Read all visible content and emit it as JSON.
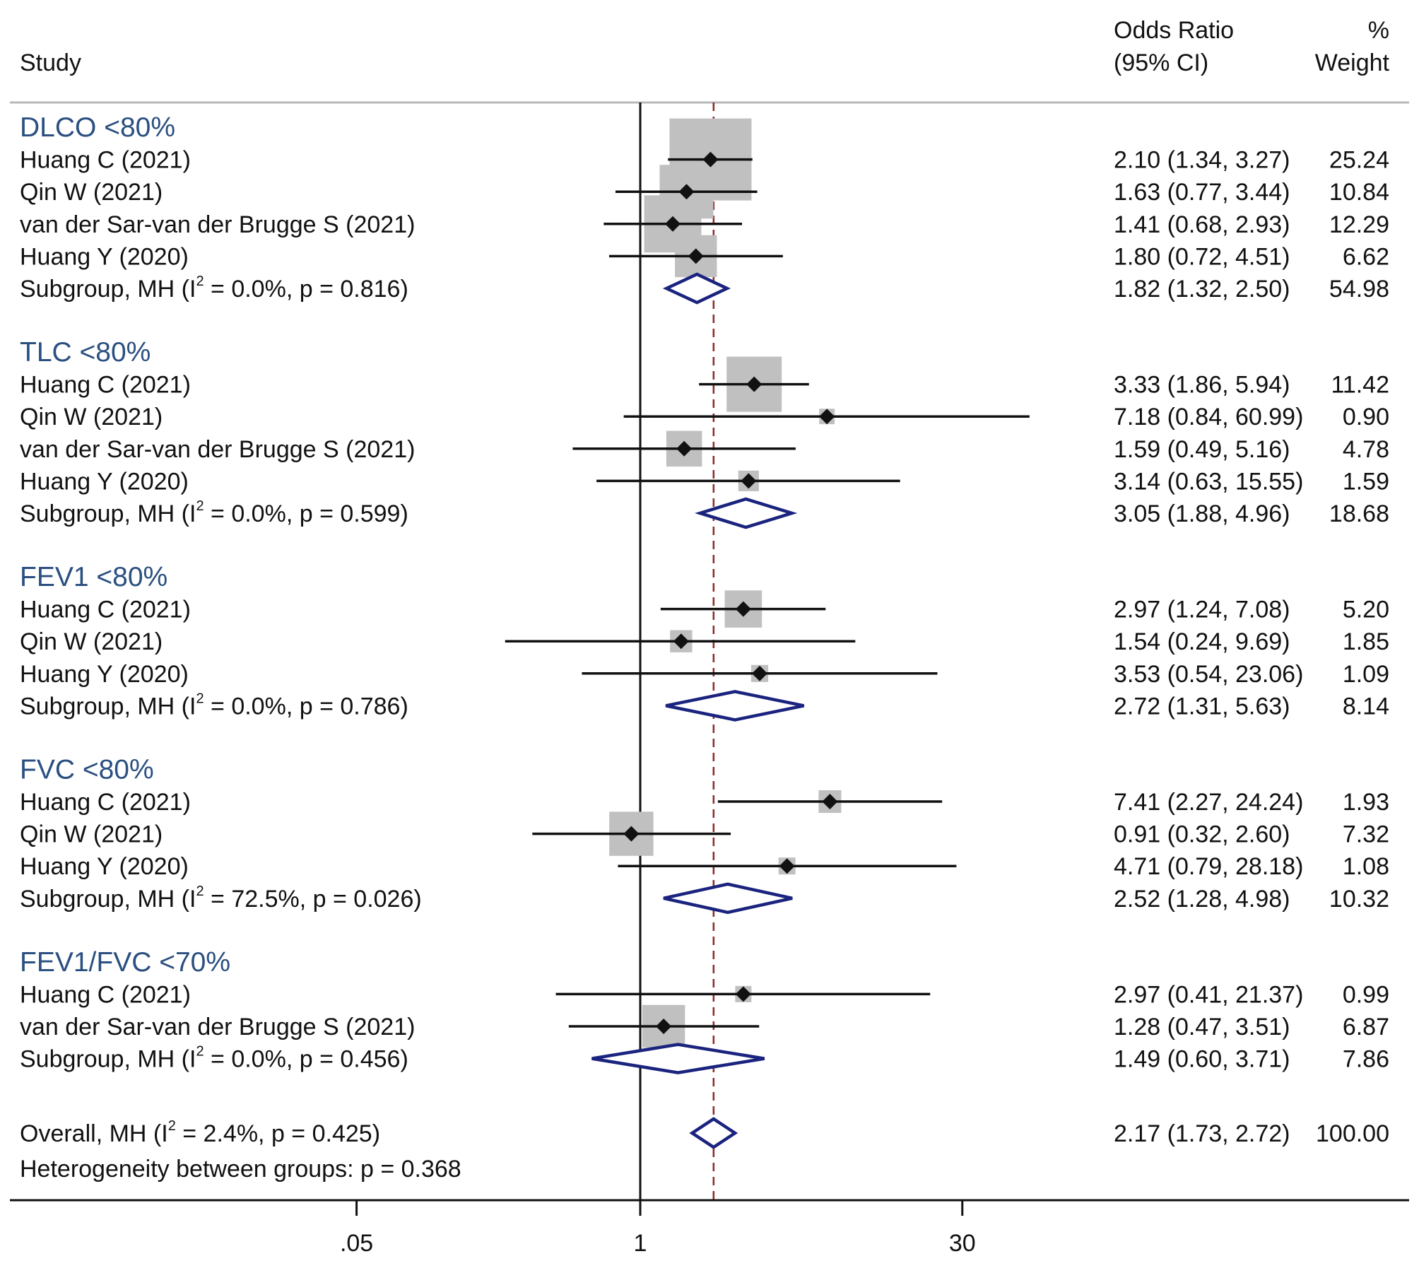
{
  "chart_data": {
    "type": "forest",
    "measure": "Odds Ratio",
    "scale": "log",
    "header": {
      "study": "Study",
      "or_line1": "Odds Ratio",
      "or_line2": "(95% CI)",
      "weight_line1": "%",
      "weight_line2": "Weight"
    },
    "null_value": 1,
    "overall_reference": 2.17,
    "x_ticks": [
      {
        "value": 0.05,
        "label": ".05"
      },
      {
        "value": 1,
        "label": "1"
      },
      {
        "value": 30,
        "label": "30"
      }
    ],
    "groups": [
      {
        "title": "DLCO <80%",
        "studies": [
          {
            "label": "Huang C (2021)",
            "or": 2.1,
            "lo": 1.34,
            "hi": 3.27,
            "ci_text": "2.10 (1.34, 3.27)",
            "weight": "25.24"
          },
          {
            "label": "Qin W (2021)",
            "or": 1.63,
            "lo": 0.77,
            "hi": 3.44,
            "ci_text": "1.63 (0.77, 3.44)",
            "weight": "10.84"
          },
          {
            "label": "van der Sar-van der Brugge S (2021)",
            "or": 1.41,
            "lo": 0.68,
            "hi": 2.93,
            "ci_text": "1.41 (0.68, 2.93)",
            "weight": "12.29"
          },
          {
            "label": "Huang Y (2020)",
            "or": 1.8,
            "lo": 0.72,
            "hi": 4.51,
            "ci_text": "1.80 (0.72, 4.51)",
            "weight": "6.62"
          }
        ],
        "subgroup": {
          "prefix": "Subgroup, MH (I",
          "sup": "2",
          "suffix": " = 0.0%, p = 0.816)",
          "or": 1.82,
          "lo": 1.32,
          "hi": 2.5,
          "ci_text": "1.82 (1.32, 2.50)",
          "weight": "54.98"
        }
      },
      {
        "title": "TLC <80%",
        "studies": [
          {
            "label": "Huang C (2021)",
            "or": 3.33,
            "lo": 1.86,
            "hi": 5.94,
            "ci_text": "3.33 (1.86, 5.94)",
            "weight": "11.42"
          },
          {
            "label": "Qin W (2021)",
            "or": 7.18,
            "lo": 0.84,
            "hi": 60.99,
            "ci_text": "7.18 (0.84, 60.99)",
            "weight": "0.90"
          },
          {
            "label": "van der Sar-van der Brugge S (2021)",
            "or": 1.59,
            "lo": 0.49,
            "hi": 5.16,
            "ci_text": "1.59 (0.49, 5.16)",
            "weight": "4.78"
          },
          {
            "label": "Huang Y (2020)",
            "or": 3.14,
            "lo": 0.63,
            "hi": 15.55,
            "ci_text": "3.14 (0.63, 15.55)",
            "weight": "1.59"
          }
        ],
        "subgroup": {
          "prefix": "Subgroup, MH (I",
          "sup": "2",
          "suffix": " = 0.0%, p = 0.599)",
          "or": 3.05,
          "lo": 1.88,
          "hi": 4.96,
          "ci_text": "3.05 (1.88, 4.96)",
          "weight": "18.68"
        }
      },
      {
        "title": "FEV1 <80%",
        "studies": [
          {
            "label": "Huang C (2021)",
            "or": 2.97,
            "lo": 1.24,
            "hi": 7.08,
            "ci_text": "2.97 (1.24, 7.08)",
            "weight": "5.20"
          },
          {
            "label": "Qin W (2021)",
            "or": 1.54,
            "lo": 0.24,
            "hi": 9.69,
            "ci_text": "1.54 (0.24, 9.69)",
            "weight": "1.85"
          },
          {
            "label": "Huang Y (2020)",
            "or": 3.53,
            "lo": 0.54,
            "hi": 23.06,
            "ci_text": "3.53 (0.54, 23.06)",
            "weight": "1.09"
          }
        ],
        "subgroup": {
          "prefix": "Subgroup, MH (I",
          "sup": "2",
          "suffix": " = 0.0%, p = 0.786)",
          "or": 2.72,
          "lo": 1.31,
          "hi": 5.63,
          "ci_text": "2.72 (1.31, 5.63)",
          "weight": "8.14"
        }
      },
      {
        "title": "FVC <80%",
        "studies": [
          {
            "label": "Huang C (2021)",
            "or": 7.41,
            "lo": 2.27,
            "hi": 24.24,
            "ci_text": "7.41 (2.27, 24.24)",
            "weight": "1.93"
          },
          {
            "label": "Qin W (2021)",
            "or": 0.91,
            "lo": 0.32,
            "hi": 2.6,
            "ci_text": "0.91 (0.32, 2.60)",
            "weight": "7.32"
          },
          {
            "label": "Huang Y (2020)",
            "or": 4.71,
            "lo": 0.79,
            "hi": 28.18,
            "ci_text": "4.71 (0.79, 28.18)",
            "weight": "1.08"
          }
        ],
        "subgroup": {
          "prefix": "Subgroup, MH (I",
          "sup": "2",
          "suffix": " = 72.5%, p = 0.026)",
          "or": 2.52,
          "lo": 1.28,
          "hi": 4.98,
          "ci_text": "2.52 (1.28, 4.98)",
          "weight": "10.32"
        }
      },
      {
        "title": "FEV1/FVC <70%",
        "studies": [
          {
            "label": "Huang C (2021)",
            "or": 2.97,
            "lo": 0.41,
            "hi": 21.37,
            "ci_text": "2.97 (0.41, 21.37)",
            "weight": "0.99"
          },
          {
            "label": "van der Sar-van der Brugge S (2021)",
            "or": 1.28,
            "lo": 0.47,
            "hi": 3.51,
            "ci_text": "1.28 (0.47, 3.51)",
            "weight": "6.87"
          }
        ],
        "subgroup": {
          "prefix": "Subgroup, MH (I",
          "sup": "2",
          "suffix": " = 0.0%, p = 0.456)",
          "or": 1.49,
          "lo": 0.6,
          "hi": 3.71,
          "ci_text": "1.49 (0.60, 3.71)",
          "weight": "7.86"
        }
      }
    ],
    "overall": {
      "prefix": "Overall, MH (I",
      "sup": "2",
      "suffix": " = 2.4%, p = 0.425)",
      "or": 2.17,
      "lo": 1.73,
      "hi": 2.72,
      "ci_text": "2.17 (1.73, 2.72)",
      "weight": "100.00"
    },
    "heterogeneity": "Heterogeneity between groups: p = 0.368",
    "colors": {
      "group_title": "#2a4f80",
      "diamond": "#1a237e",
      "weight_box": "#c0c0c0",
      "reference_line": "#8b2a2a",
      "ink": "#111111"
    }
  }
}
